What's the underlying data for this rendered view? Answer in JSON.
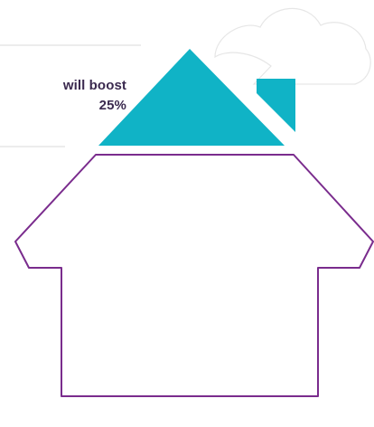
{
  "callout": {
    "line1": "will boost",
    "line2": "25%"
  },
  "colors": {
    "roof": "#10b3c6",
    "house_outline": "#7a2c8d",
    "divider": "#d9d9d9",
    "cloud_outline": "#e6e6e6",
    "text": "#3b2a4f"
  },
  "icons": [
    "cloud-icon",
    "house-icon",
    "roof-icon",
    "chimney-icon"
  ]
}
